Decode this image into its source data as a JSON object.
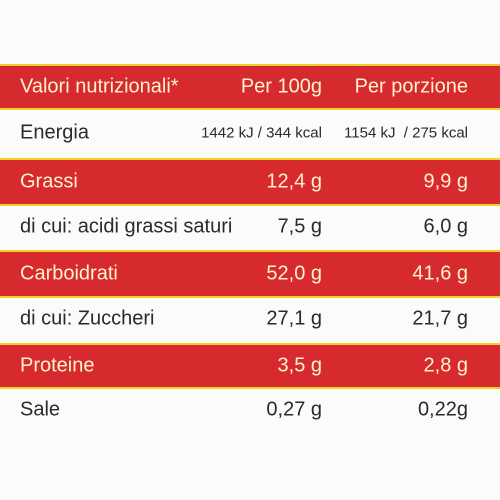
{
  "table": {
    "header": [
      "Valori nutrizionali*",
      "Per 100g",
      "Per porzione"
    ],
    "rows": [
      [
        "Energia",
        "1442 kJ / 344 kcal",
        "1154 kJ  / 275 kcal"
      ],
      [
        "Grassi",
        "12,4 g",
        "9,9 g"
      ],
      [
        "di cui: acidi grassi saturi",
        "7,5 g",
        "6,0 g"
      ],
      [
        "Carboidrati",
        "52,0 g",
        "41,6 g"
      ],
      [
        "di cui: Zuccheri",
        "27,1 g",
        "21,7 g"
      ],
      [
        "Proteine",
        "3,5 g",
        "2,8 g"
      ],
      [
        "Sale",
        "0,27 g",
        "0,22g"
      ]
    ]
  }
}
